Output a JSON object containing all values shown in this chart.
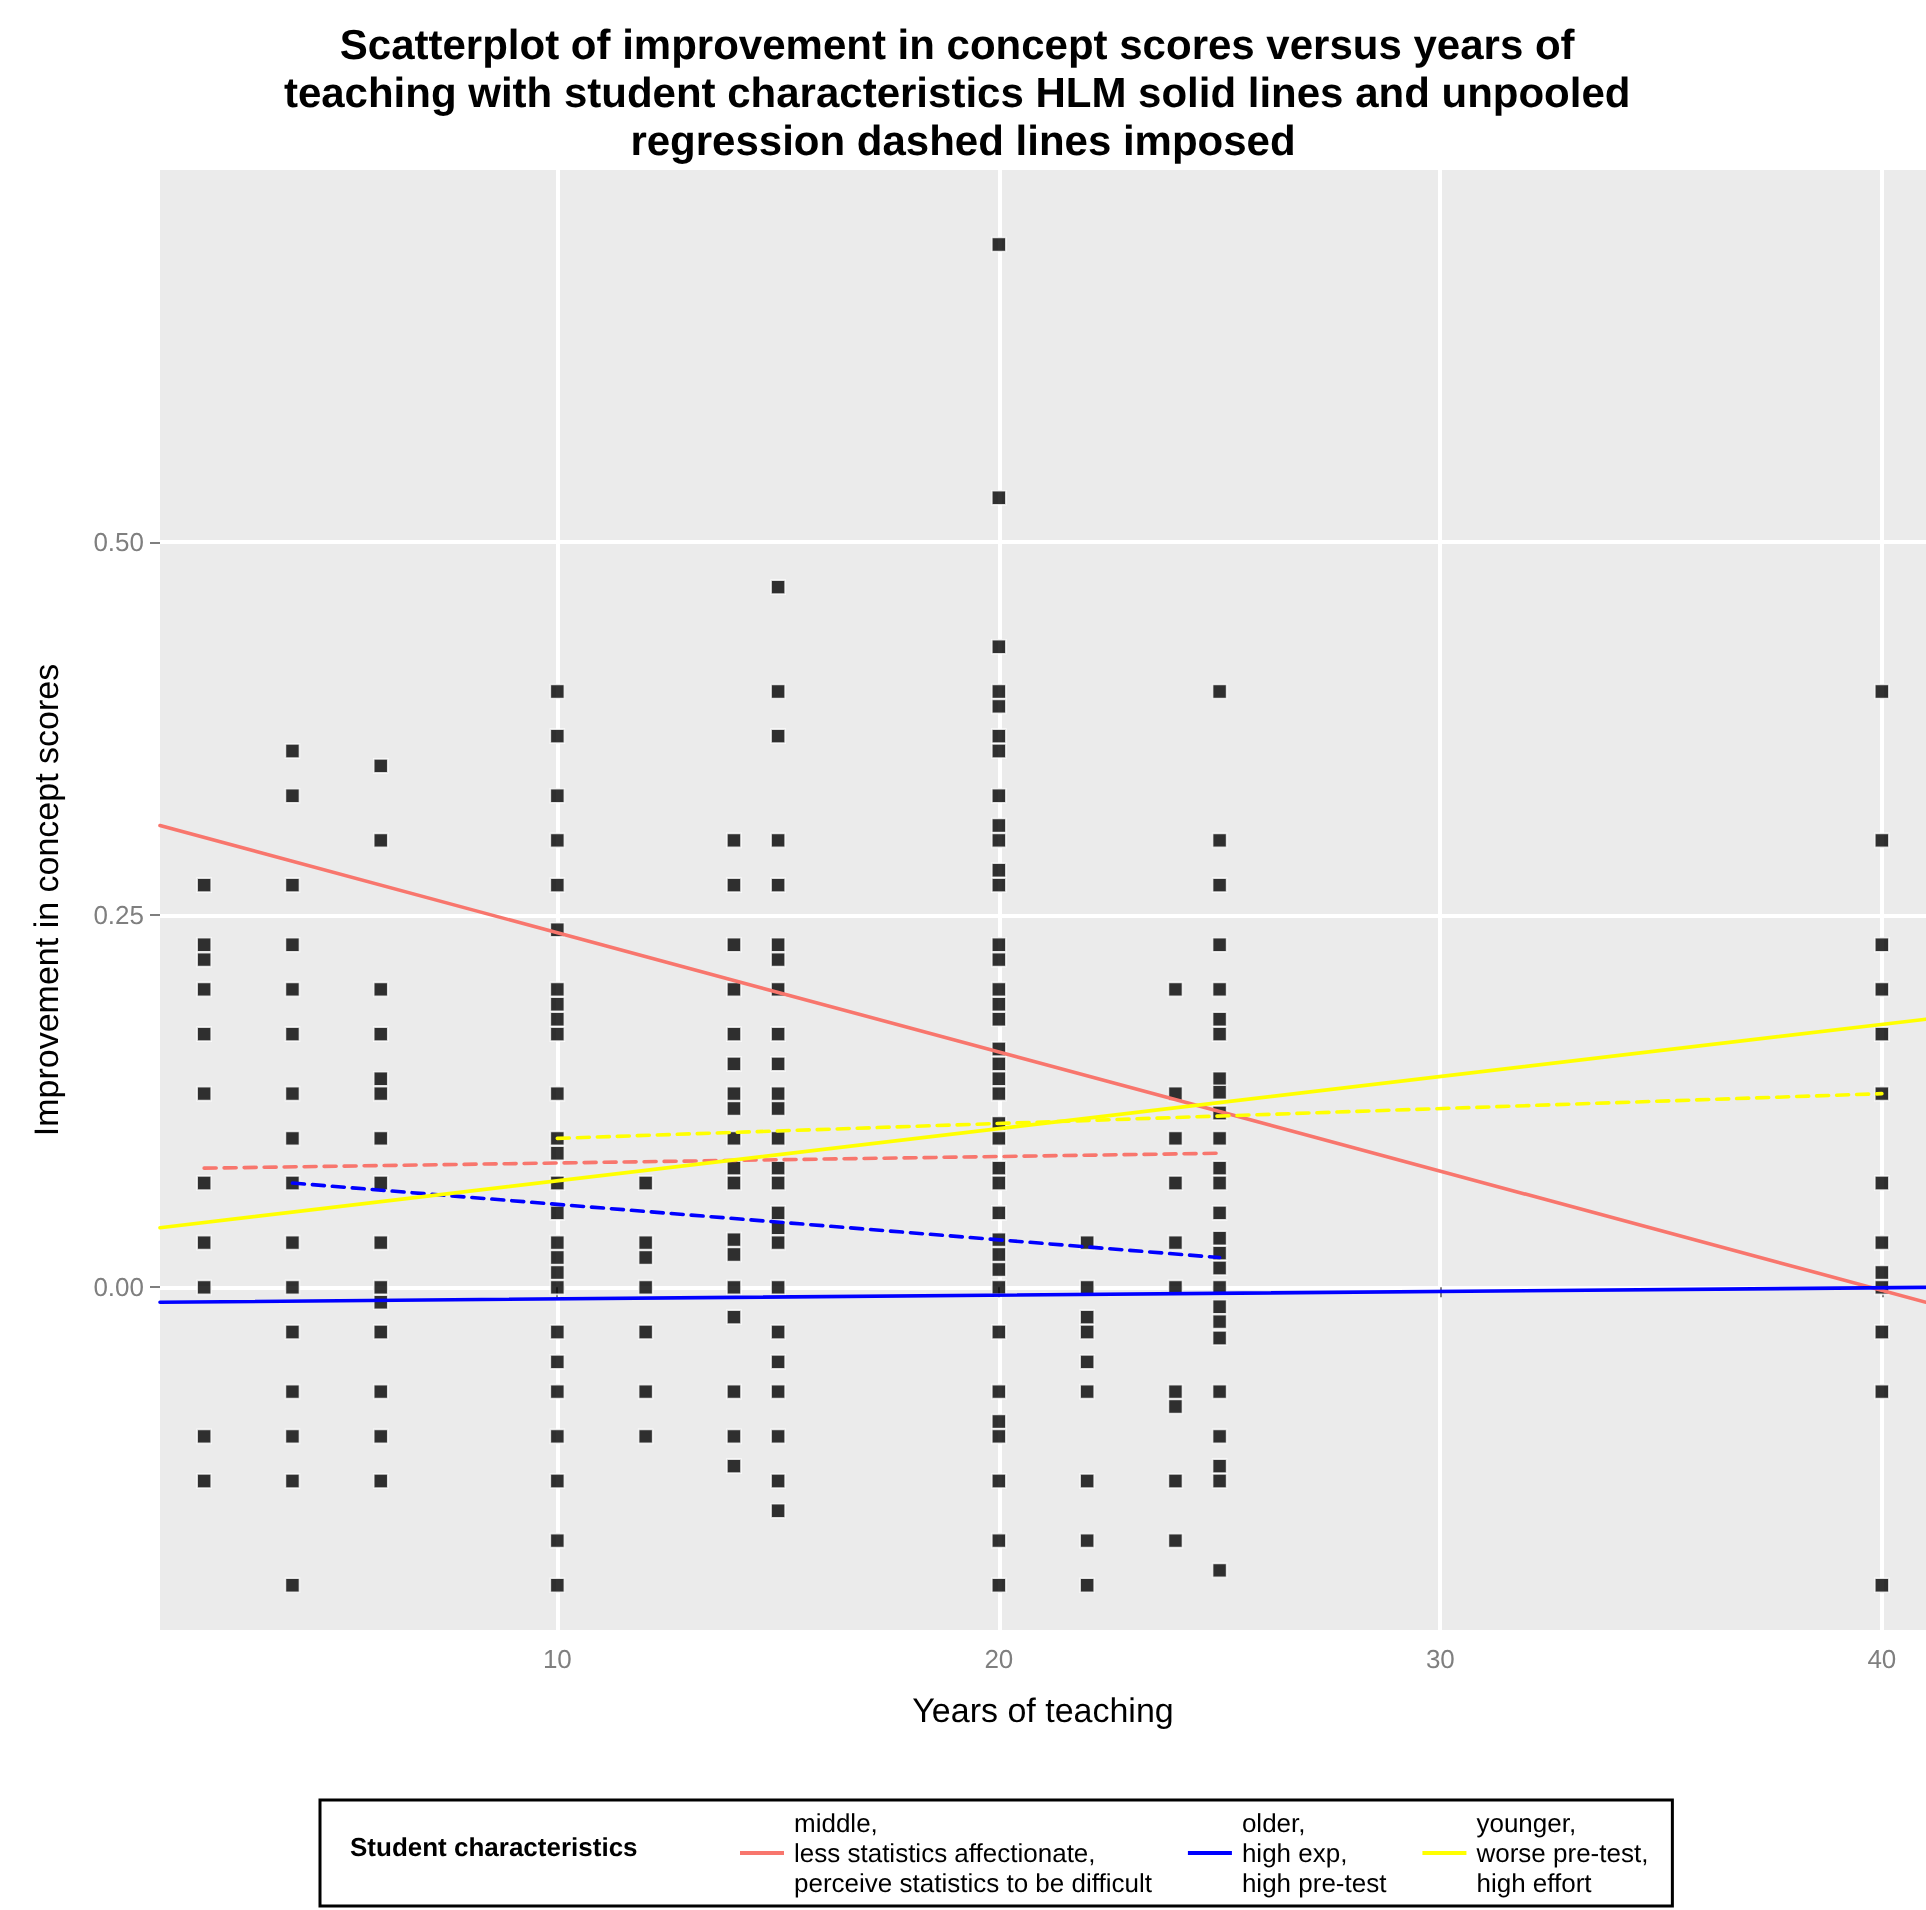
{
  "chart_data": {
    "type": "scatter",
    "title": "Scatterplot of improvement in concept scores versus years of teaching with student characteristics HLM solid lines and unpooled regression dashed lines imposed",
    "xlabel": "Years of teaching",
    "ylabel": "Improvement in concept scores",
    "legend_title": "Student characteristics",
    "xlim": [
      1,
      41
    ],
    "xticks": [
      10,
      20,
      30,
      40
    ],
    "ylim": [
      -0.23,
      0.75
    ],
    "yticks": [
      {
        "value": 0,
        "label": "0.00"
      },
      {
        "value": 0.25,
        "label": "0.25"
      },
      {
        "value": 0.5,
        "label": "0.50"
      }
    ],
    "grid": true,
    "legend": "bottom",
    "marker": "square",
    "series": [
      {
        "color": "#000000",
        "x": [
          2,
          2,
          2,
          2,
          2,
          2,
          2,
          2,
          2,
          2,
          2
        ],
        "values": [
          0.27,
          0.23,
          0.22,
          0.2,
          0.17,
          0.13,
          0.07,
          0.03,
          0,
          -0.1,
          -0.13
        ]
      },
      {
        "color": "#000000",
        "x": [
          4,
          4,
          4,
          4,
          4,
          4,
          4,
          4,
          4,
          4,
          4,
          4,
          4,
          4,
          4,
          4
        ],
        "values": [
          0.36,
          0.33,
          0.27,
          0.23,
          0.2,
          0.17,
          0.13,
          0.1,
          0.07,
          0.03,
          0,
          -0.03,
          -0.07,
          -0.1,
          -0.13,
          -0.2
        ]
      },
      {
        "color": "#000000",
        "x": [
          6,
          6,
          6,
          6,
          6,
          6,
          6,
          6,
          6,
          6,
          6,
          6,
          6,
          6,
          6
        ],
        "values": [
          0.35,
          0.3,
          0.2,
          0.17,
          0.14,
          0.13,
          0.1,
          0.07,
          0.03,
          0,
          -0.01,
          -0.03,
          -0.07,
          -0.1,
          -0.13
        ]
      },
      {
        "color": "#000000",
        "x": [
          10,
          10,
          10,
          10,
          10,
          10,
          10,
          10,
          10,
          10,
          10,
          10,
          10,
          10,
          10,
          10,
          10,
          10,
          10,
          10,
          10,
          10,
          10,
          10,
          10,
          10
        ],
        "values": [
          0.4,
          0.37,
          0.33,
          0.3,
          0.27,
          0.24,
          0.2,
          0.19,
          0.18,
          0.17,
          0.13,
          0.1,
          0.09,
          0.07,
          0.05,
          0.03,
          0.02,
          0.01,
          0,
          -0.03,
          -0.05,
          -0.07,
          -0.1,
          -0.13,
          -0.17,
          -0.2
        ]
      },
      {
        "color": "#000000",
        "x": [
          12,
          12,
          12,
          12,
          12,
          12,
          12
        ],
        "values": [
          0.07,
          0.03,
          0.02,
          0,
          -0.03,
          -0.07,
          -0.1
        ]
      },
      {
        "color": "#000000",
        "x": [
          14,
          14,
          14,
          14,
          14,
          14,
          14,
          14,
          14,
          14,
          14,
          14,
          14,
          14,
          14,
          14,
          14,
          14
        ],
        "values": [
          0.3,
          0.27,
          0.23,
          0.2,
          0.17,
          0.15,
          0.13,
          0.12,
          0.1,
          0.08,
          0.07,
          0.032,
          0.022,
          0,
          -0.02,
          -0.07,
          -0.1,
          -0.12
        ]
      },
      {
        "color": "#000000",
        "x": [
          15,
          15,
          15,
          15,
          15,
          15,
          15,
          15,
          15,
          15,
          15,
          15,
          15,
          15,
          15,
          15,
          15,
          15,
          15,
          15,
          15,
          15,
          15,
          15,
          15
        ],
        "values": [
          0.47,
          0.4,
          0.37,
          0.3,
          0.27,
          0.23,
          0.22,
          0.2,
          0.17,
          0.15,
          0.13,
          0.12,
          0.1,
          0.08,
          0.07,
          0.05,
          0.04,
          0.03,
          0,
          -0.03,
          -0.05,
          -0.07,
          -0.1,
          -0.13,
          -0.15
        ]
      },
      {
        "color": "#000000",
        "x": [
          20,
          20,
          20,
          20,
          20,
          20,
          20,
          20,
          20,
          20,
          20,
          20,
          20,
          20,
          20,
          20,
          20,
          20,
          20,
          20,
          20,
          20,
          20,
          20,
          20,
          20,
          20,
          20,
          20,
          20,
          20,
          20,
          20,
          20,
          20,
          20,
          20
        ],
        "values": [
          0.7,
          0.53,
          0.43,
          0.4,
          0.39,
          0.37,
          0.36,
          0.33,
          0.31,
          0.3,
          0.28,
          0.27,
          0.23,
          0.22,
          0.2,
          0.19,
          0.18,
          0.16,
          0.15,
          0.14,
          0.13,
          0.11,
          0.1,
          0.08,
          0.07,
          0.05,
          0.032,
          0.022,
          0.012,
          0,
          -0.03,
          -0.07,
          -0.09,
          -0.1,
          -0.13,
          -0.17,
          -0.2
        ]
      },
      {
        "color": "#000000",
        "x": [
          22,
          22,
          22,
          22,
          22,
          22,
          22,
          22,
          22
        ],
        "values": [
          0.03,
          0,
          -0.02,
          -0.03,
          -0.05,
          -0.07,
          -0.13,
          -0.17,
          -0.2
        ]
      },
      {
        "color": "#000000",
        "x": [
          24,
          24,
          24,
          24,
          24,
          24,
          24,
          24,
          24,
          24
        ],
        "values": [
          0.2,
          0.13,
          0.1,
          0.07,
          0.03,
          0,
          -0.07,
          -0.08,
          -0.13,
          -0.17
        ]
      },
      {
        "color": "#000000",
        "x": [
          25,
          25,
          25,
          25,
          25,
          25,
          25,
          25,
          25,
          25,
          25,
          25,
          25,
          25,
          25,
          25,
          25,
          25,
          25,
          25,
          25,
          25,
          25,
          25,
          25,
          25
        ],
        "values": [
          0.4,
          0.3,
          0.27,
          0.23,
          0.2,
          0.18,
          0.17,
          0.14,
          0.131,
          0.117,
          0.1,
          0.08,
          0.07,
          0.05,
          0.033,
          0.023,
          0.013,
          0,
          -0.013,
          -0.023,
          -0.034,
          -0.07,
          -0.1,
          -0.12,
          -0.13,
          -0.19
        ]
      },
      {
        "color": "#000000",
        "x": [
          40,
          40,
          40,
          40,
          40,
          40,
          40,
          40,
          40,
          40,
          40,
          40,
          40
        ],
        "values": [
          0.4,
          0.3,
          0.23,
          0.2,
          0.17,
          0.13,
          0.07,
          0.03,
          0.01,
          0,
          -0.03,
          -0.07,
          -0.2
        ]
      },
      {
        "type": "line",
        "name": "middle, less statistics affectionate, perceive statistics to be difficult",
        "color": "#f8766d",
        "marker": "none",
        "line_style": "solid",
        "x": [
          1,
          41
        ],
        "values": [
          0.31,
          -0.01
        ]
      },
      {
        "type": "line",
        "color": "#f8766d",
        "marker": "none",
        "line_style": "dashed",
        "x": [
          2,
          25
        ],
        "values": [
          0.08,
          0.09
        ]
      },
      {
        "type": "line",
        "name": "older, high exp, high pre-test",
        "color": "#0000ff",
        "marker": "none",
        "line_style": "solid",
        "x": [
          1,
          41
        ],
        "values": [
          -0.01,
          0.0
        ]
      },
      {
        "type": "line",
        "color": "#0000ff",
        "marker": "none",
        "line_style": "dashed",
        "x": [
          4,
          25
        ],
        "values": [
          0.07,
          0.02
        ]
      },
      {
        "type": "line",
        "name": "younger, worse pre-test, high effort",
        "color": "#ffff00",
        "marker": "none",
        "line_style": "solid",
        "x": [
          1,
          41
        ],
        "values": [
          0.04,
          0.18
        ]
      },
      {
        "type": "line",
        "color": "#ffff00",
        "marker": "none",
        "line_style": "dashed",
        "x": [
          10,
          40
        ],
        "values": [
          0.1,
          0.13
        ]
      }
    ]
  }
}
